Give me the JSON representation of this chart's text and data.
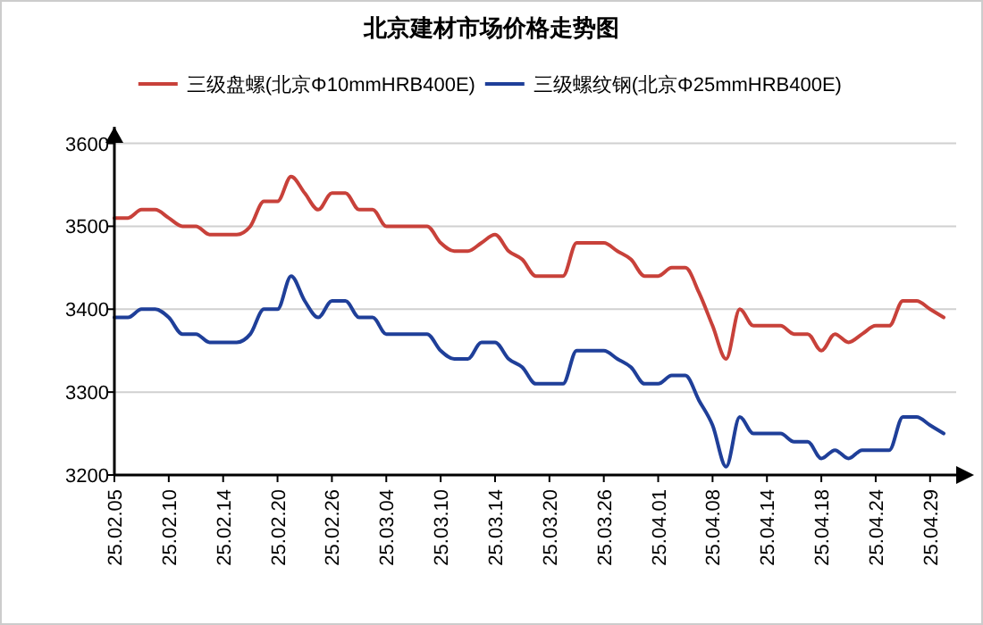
{
  "chart_data": {
    "type": "line",
    "title": "北京建材市场价格走势图",
    "categories": [
      "25.02.05",
      null,
      null,
      null,
      "25.02.10",
      null,
      null,
      null,
      "25.02.14",
      null,
      null,
      null,
      "25.02.20",
      null,
      null,
      null,
      "25.02.26",
      null,
      null,
      null,
      "25.03.04",
      null,
      null,
      null,
      "25.03.10",
      null,
      null,
      null,
      "25.03.14",
      null,
      null,
      null,
      "25.03.20",
      null,
      null,
      null,
      "25.03.26",
      null,
      null,
      null,
      "25.04.01",
      null,
      null,
      null,
      "25.04.08",
      null,
      null,
      null,
      "25.04.14",
      null,
      null,
      null,
      "25.04.18",
      null,
      null,
      null,
      "25.04.24",
      null,
      null,
      null,
      "25.04.29",
      null
    ],
    "series": [
      {
        "name": "三级盘螺(北京Φ10mmHRB400E)",
        "color": "#c8413a",
        "values": [
          3510,
          3510,
          3520,
          3520,
          3510,
          3500,
          3500,
          3490,
          3490,
          3490,
          3500,
          3530,
          3530,
          3560,
          3540,
          3520,
          3540,
          3540,
          3520,
          3520,
          3500,
          3500,
          3500,
          3500,
          3480,
          3470,
          3470,
          3480,
          3490,
          3470,
          3460,
          3440,
          3440,
          3440,
          3480,
          3480,
          3480,
          3470,
          3460,
          3440,
          3440,
          3450,
          3450,
          3420,
          3380,
          3340,
          3400,
          3380,
          3380,
          3380,
          3370,
          3370,
          3350,
          3370,
          3360,
          3370,
          3380,
          3380,
          3410,
          3410,
          3400,
          3390
        ]
      },
      {
        "name": "三级螺纹钢(北京Φ25mmHRB400E)",
        "color": "#1f3f99",
        "values": [
          3390,
          3390,
          3400,
          3400,
          3390,
          3370,
          3370,
          3360,
          3360,
          3360,
          3370,
          3400,
          3400,
          3440,
          3410,
          3390,
          3410,
          3410,
          3390,
          3390,
          3370,
          3370,
          3370,
          3370,
          3350,
          3340,
          3340,
          3360,
          3360,
          3340,
          3330,
          3310,
          3310,
          3310,
          3350,
          3350,
          3350,
          3340,
          3330,
          3310,
          3310,
          3320,
          3320,
          3290,
          3260,
          3210,
          3270,
          3250,
          3250,
          3250,
          3240,
          3240,
          3220,
          3230,
          3220,
          3230,
          3230,
          3230,
          3270,
          3270,
          3260,
          3250
        ]
      }
    ],
    "ylim": [
      3200,
      3620
    ],
    "yticks": [
      3200,
      3300,
      3400,
      3500,
      3600
    ],
    "grid": "y",
    "legend": "top",
    "line_style": "solid",
    "marker": "none"
  }
}
